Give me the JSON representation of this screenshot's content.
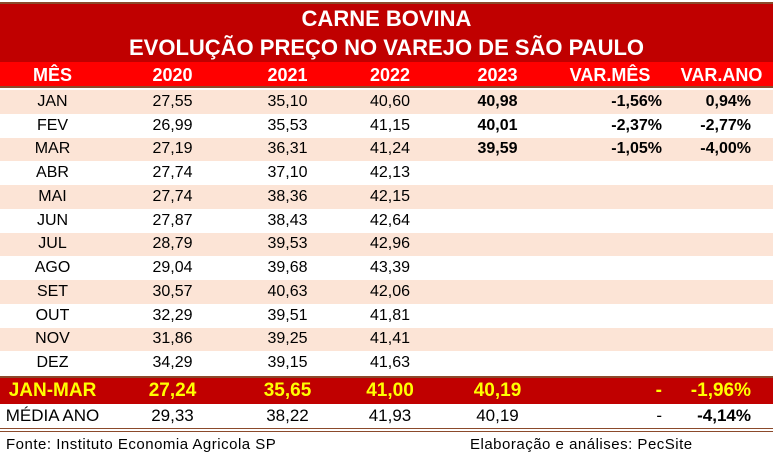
{
  "title": "CARNE BOVINA",
  "subtitle": "EVOLUÇÃO PREÇO NO VAREJO DE SÃO PAULO",
  "headers": [
    "MÊS",
    "2020",
    "2021",
    "2022",
    "2023",
    "VAR.MÊS",
    "VAR.ANO"
  ],
  "rows": [
    [
      "JAN",
      "27,55",
      "35,10",
      "40,60",
      "40,98",
      "-1,56%",
      "0,94%"
    ],
    [
      "FEV",
      "26,99",
      "35,53",
      "41,15",
      "40,01",
      "-2,37%",
      "-2,77%"
    ],
    [
      "MAR",
      "27,19",
      "36,31",
      "41,24",
      "39,59",
      "-1,05%",
      "-4,00%"
    ],
    [
      "ABR",
      "27,74",
      "37,10",
      "42,13",
      "",
      "",
      ""
    ],
    [
      "MAI",
      "27,74",
      "38,36",
      "42,15",
      "",
      "",
      ""
    ],
    [
      "JUN",
      "27,87",
      "38,43",
      "42,64",
      "",
      "",
      ""
    ],
    [
      "JUL",
      "28,79",
      "39,53",
      "42,96",
      "",
      "",
      ""
    ],
    [
      "AGO",
      "29,04",
      "39,68",
      "43,39",
      "",
      "",
      ""
    ],
    [
      "SET",
      "30,57",
      "40,63",
      "42,06",
      "",
      "",
      ""
    ],
    [
      "OUT",
      "32,29",
      "39,51",
      "41,81",
      "",
      "",
      ""
    ],
    [
      "NOV",
      "31,86",
      "39,25",
      "41,41",
      "",
      "",
      ""
    ],
    [
      "DEZ",
      "34,29",
      "39,15",
      "41,63",
      "",
      "",
      ""
    ]
  ],
  "total": [
    "JAN-MAR",
    "27,24",
    "35,65",
    "41,00",
    "40,19",
    "-",
    "-1,96%"
  ],
  "average": [
    "MÉDIA ANO",
    "29,33",
    "38,22",
    "41,93",
    "40,19",
    "-",
    "-4,14%"
  ],
  "source": "Fonte: Instituto Economia Agricola SP",
  "credit": "Elaboração e análises: PecSite"
}
